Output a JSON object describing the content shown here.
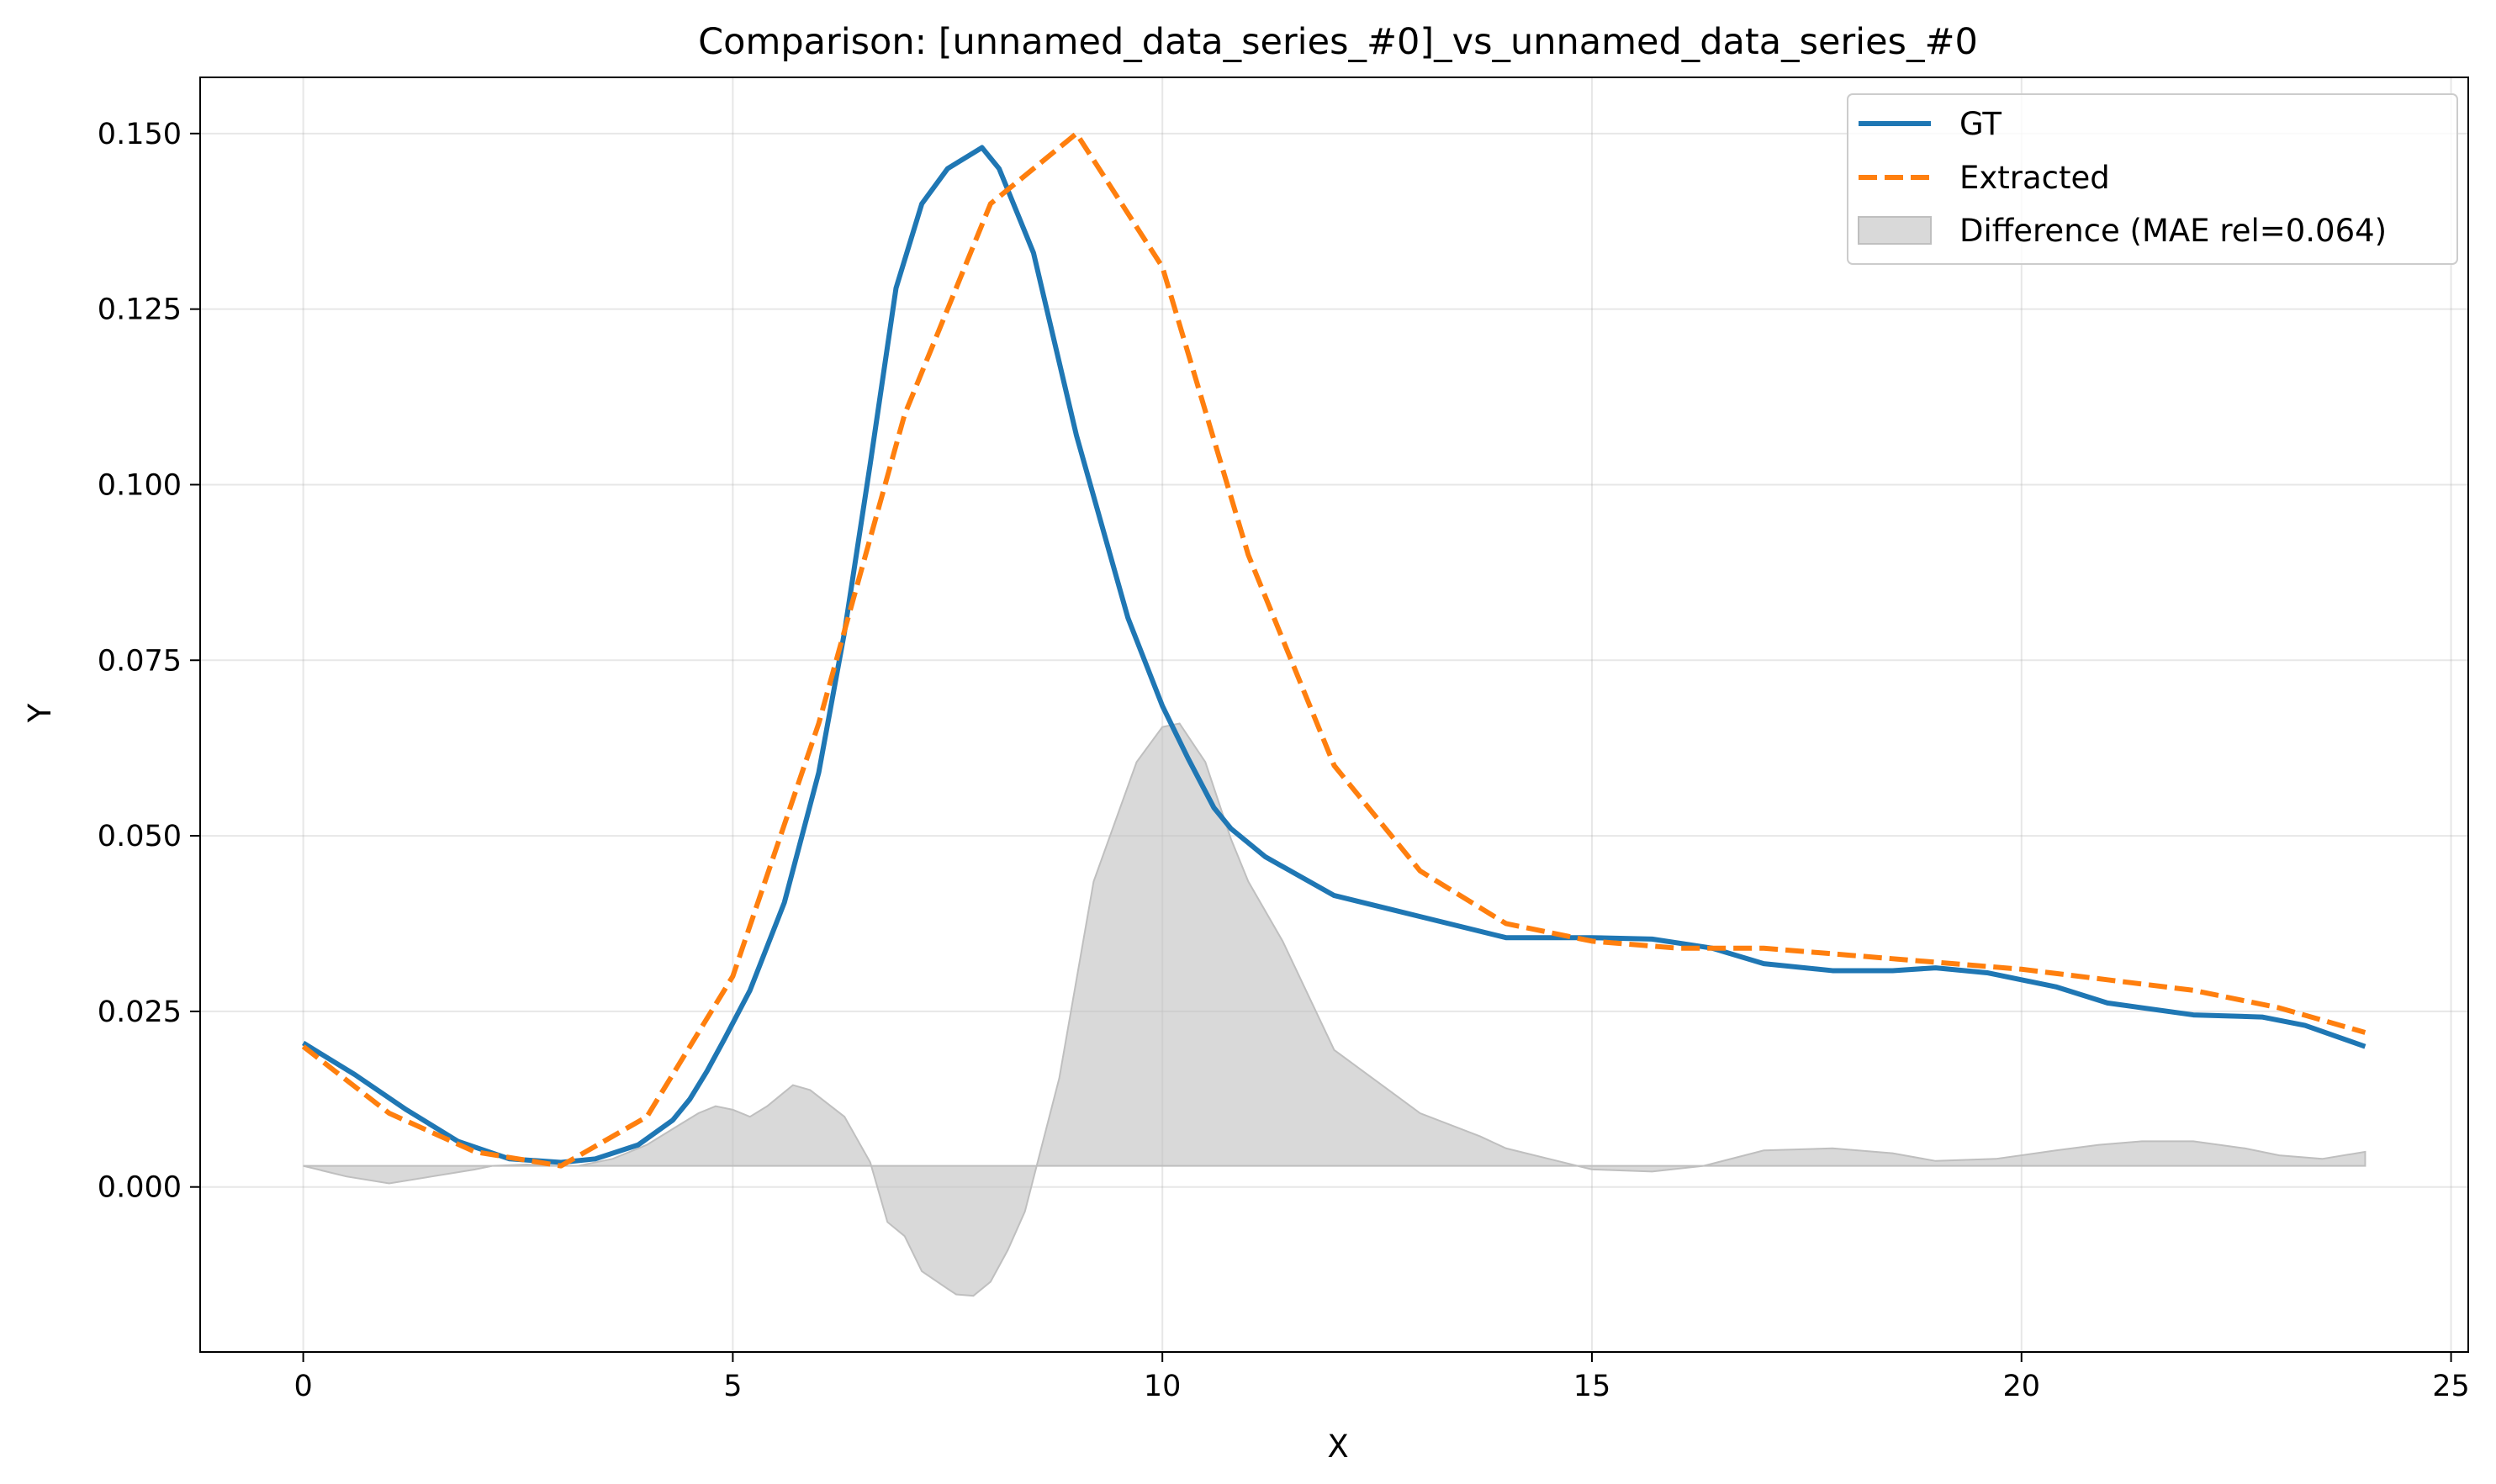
{
  "chart_data": {
    "type": "line",
    "title": "Comparison: [unnamed_data_series_#0]_vs_unnamed_data_series_#0",
    "xlabel": "X",
    "ylabel": "Y",
    "xlim": [
      -1.2,
      25.2
    ],
    "ylim": [
      -0.0235,
      0.158
    ],
    "xticks": [
      0,
      5,
      10,
      15,
      20,
      25
    ],
    "yticks": [
      0.0,
      0.025,
      0.05,
      0.075,
      0.1,
      0.125,
      0.15
    ],
    "xtick_labels": [
      "0",
      "5",
      "10",
      "15",
      "20",
      "25"
    ],
    "ytick_labels": [
      "0.000",
      "0.025",
      "0.050",
      "0.075",
      "0.100",
      "0.125",
      "0.150"
    ],
    "grid": true,
    "legend_position": "top-right",
    "series": [
      {
        "name": "GT",
        "style": "solid",
        "color": "#1f77b4",
        "x": [
          0,
          0.6,
          1.2,
          1.8,
          2.4,
          3.0,
          3.4,
          3.9,
          4.3,
          4.5,
          4.7,
          4.9,
          5.2,
          5.6,
          6.0,
          6.3,
          6.6,
          6.9,
          7.2,
          7.5,
          7.9,
          8.1,
          8.5,
          9.0,
          9.6,
          10.0,
          10.3,
          10.6,
          10.8,
          11.2,
          12.0,
          13.0,
          14.0,
          15.0,
          15.7,
          16.4,
          17.0,
          17.8,
          18.5,
          19.0,
          19.6,
          20.4,
          21.0,
          22.0,
          22.8,
          23.3,
          24.0
        ],
        "y": [
          0.0205,
          0.016,
          0.011,
          0.0065,
          0.004,
          0.0035,
          0.004,
          0.006,
          0.0095,
          0.0125,
          0.0165,
          0.021,
          0.028,
          0.0405,
          0.059,
          0.079,
          0.103,
          0.128,
          0.14,
          0.145,
          0.148,
          0.145,
          0.133,
          0.107,
          0.081,
          0.0685,
          0.061,
          0.054,
          0.051,
          0.047,
          0.0415,
          0.0385,
          0.0355,
          0.0355,
          0.0353,
          0.034,
          0.0318,
          0.0308,
          0.0308,
          0.0312,
          0.0305,
          0.0285,
          0.0262,
          0.0245,
          0.0242,
          0.023,
          0.02
        ]
      },
      {
        "name": "Extracted",
        "style": "dashed",
        "color": "#ff7f0e",
        "x": [
          0,
          1.0,
          2.0,
          3.0,
          4.0,
          5.0,
          6.0,
          7.0,
          8.0,
          9.0,
          10.0,
          11.0,
          12.0,
          13.0,
          14.0,
          15.0,
          16.0,
          17.0,
          18.0,
          19.0,
          20.0,
          21.0,
          22.0,
          23.0,
          24.0
        ],
        "y": [
          0.02,
          0.0105,
          0.005,
          0.003,
          0.01,
          0.03,
          0.066,
          0.11,
          0.14,
          0.15,
          0.131,
          0.09,
          0.06,
          0.045,
          0.0375,
          0.035,
          0.034,
          0.034,
          0.033,
          0.032,
          0.031,
          0.0295,
          0.028,
          0.0255,
          0.022
        ]
      }
    ],
    "difference": {
      "name": "Difference (MAE rel=0.064)",
      "color": "#bfbfbf",
      "baseline": 0.003,
      "x": [
        0,
        0.5,
        1.0,
        1.5,
        2.0,
        2.2,
        2.6,
        3.0,
        3.2,
        3.6,
        4.0,
        4.4,
        4.6,
        4.8,
        5.0,
        5.2,
        5.4,
        5.7,
        5.9,
        6.3,
        6.6,
        6.8,
        7.0,
        7.2,
        7.5,
        7.6,
        7.8,
        8.0,
        8.2,
        8.4,
        8.8,
        9.2,
        9.7,
        10.0,
        10.2,
        10.5,
        10.8,
        11.0,
        11.4,
        12.0,
        13.0,
        13.7,
        14.0,
        14.5,
        15.0,
        15.7,
        16.3,
        17.0,
        17.8,
        18.5,
        19.0,
        19.7,
        20.4,
        20.9,
        21.4,
        22.0,
        22.6,
        23.0,
        23.5,
        24.0
      ],
      "y": [
        0.003,
        0.0015,
        0.0005,
        0.0015,
        0.0025,
        0.003,
        0.0032,
        0.003,
        0.003,
        0.004,
        0.006,
        0.009,
        0.0105,
        0.0115,
        0.011,
        0.01,
        0.0115,
        0.0145,
        0.0138,
        0.01,
        0.0035,
        -0.005,
        -0.007,
        -0.012,
        -0.0145,
        -0.0153,
        -0.0155,
        -0.0135,
        -0.009,
        -0.0035,
        0.0155,
        0.0435,
        0.0605,
        0.0655,
        0.066,
        0.0605,
        0.0495,
        0.0435,
        0.035,
        0.0195,
        0.0105,
        0.0072,
        0.0055,
        0.004,
        0.0025,
        0.0022,
        0.003,
        0.0052,
        0.0055,
        0.0048,
        0.0037,
        0.004,
        0.0052,
        0.006,
        0.0065,
        0.0065,
        0.0055,
        0.0045,
        0.004,
        0.005
      ]
    }
  }
}
